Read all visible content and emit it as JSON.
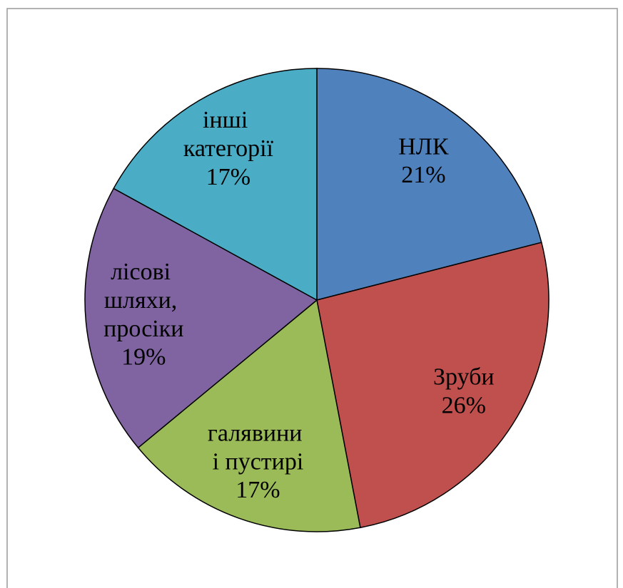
{
  "chart_data": {
    "type": "pie",
    "categories": [
      "НЛК",
      "Зруби",
      "галявини\nі пустирі",
      "лісові\nшляхи,\nпросіки",
      "інші\nкатегорії"
    ],
    "values": [
      21,
      26,
      17,
      19,
      17
    ],
    "value_labels": [
      "21%",
      "26%",
      "17%",
      "19%",
      "17%"
    ],
    "colors": [
      "#4f81bd",
      "#c0504d",
      "#9bbb59",
      "#8064a2",
      "#4bacc6"
    ]
  }
}
